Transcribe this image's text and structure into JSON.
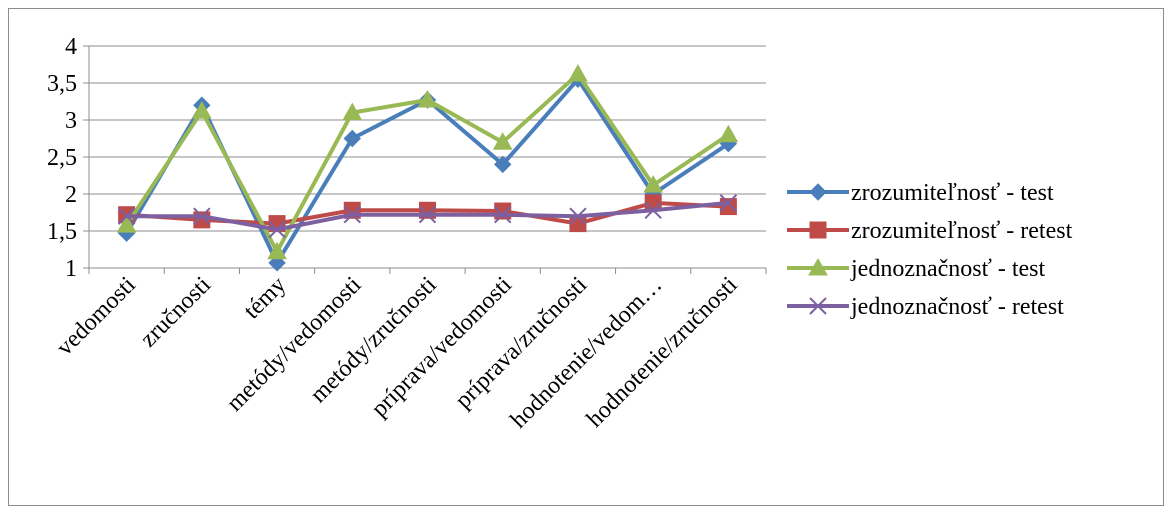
{
  "chart_data": {
    "type": "line",
    "title": "",
    "xlabel": "",
    "ylabel": "",
    "ylim": [
      1,
      4
    ],
    "yticks": [
      "1",
      "1,5",
      "2",
      "2,5",
      "3",
      "3,5",
      "4"
    ],
    "ytick_values": [
      1,
      1.5,
      2,
      2.5,
      3,
      3.5,
      4
    ],
    "grid": true,
    "legend_position": "right",
    "categories": [
      "vedomosti",
      "zručnosti",
      "témy",
      "metódy/vedomosti",
      "metódy/zručnosti",
      "príprava/vedomosti",
      "príprava/zručnosti",
      "hodnotenie/vedom…",
      "hodnotenie/zručnosti"
    ],
    "series": [
      {
        "name": "zrozumiteľnosť - test",
        "color": "#4a7ebb",
        "marker": "diamond",
        "values": [
          1.47,
          3.2,
          1.07,
          2.75,
          3.27,
          2.4,
          3.55,
          2.0,
          2.68
        ]
      },
      {
        "name": "zrozumiteľnosť - retest",
        "color": "#be4b48",
        "marker": "square",
        "values": [
          1.72,
          1.65,
          1.6,
          1.78,
          1.78,
          1.77,
          1.6,
          1.88,
          1.83
        ]
      },
      {
        "name": "jednoznačnosť - test",
        "color": "#98b954",
        "marker": "triangle",
        "values": [
          1.58,
          3.12,
          1.22,
          3.1,
          3.27,
          2.7,
          3.62,
          2.12,
          2.8
        ]
      },
      {
        "name": "jednoznačnosť - retest",
        "color": "#7d60a0",
        "marker": "x",
        "values": [
          1.7,
          1.7,
          1.52,
          1.72,
          1.72,
          1.72,
          1.7,
          1.78,
          1.88
        ]
      }
    ]
  }
}
